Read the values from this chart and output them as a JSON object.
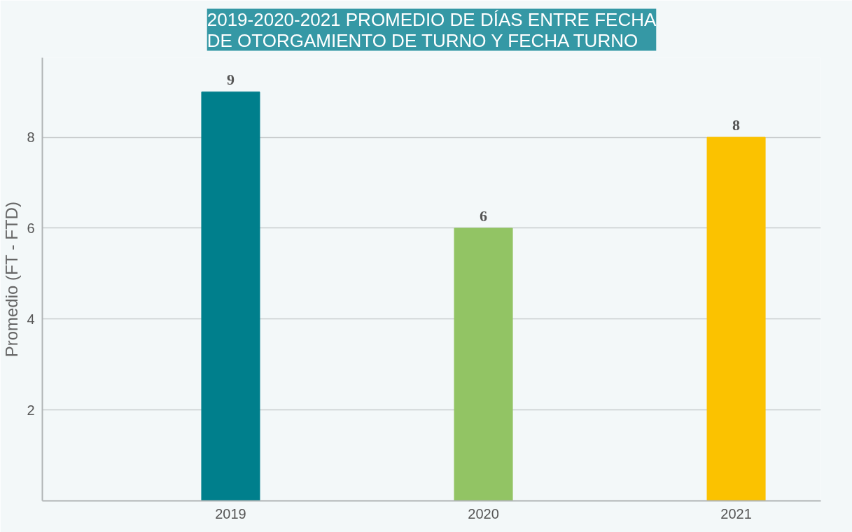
{
  "chart_data": {
    "type": "bar",
    "title": "2019-2020-2021 PROMEDIO DE DÍAS ENTRE FECHA\nDE OTORGAMIENTO DE TURNO Y FECHA TURNO",
    "ylabel": "Promedio (FT - FTD)",
    "categories": [
      "2019",
      "2020",
      "2021"
    ],
    "values": [
      9,
      6,
      8
    ],
    "colors": [
      "#007f8c",
      "#92c464",
      "#fbc200"
    ],
    "ylim": [
      0,
      9.75
    ],
    "yticks": [
      2,
      4,
      6,
      8
    ],
    "grid": "y",
    "data_labels": true
  }
}
